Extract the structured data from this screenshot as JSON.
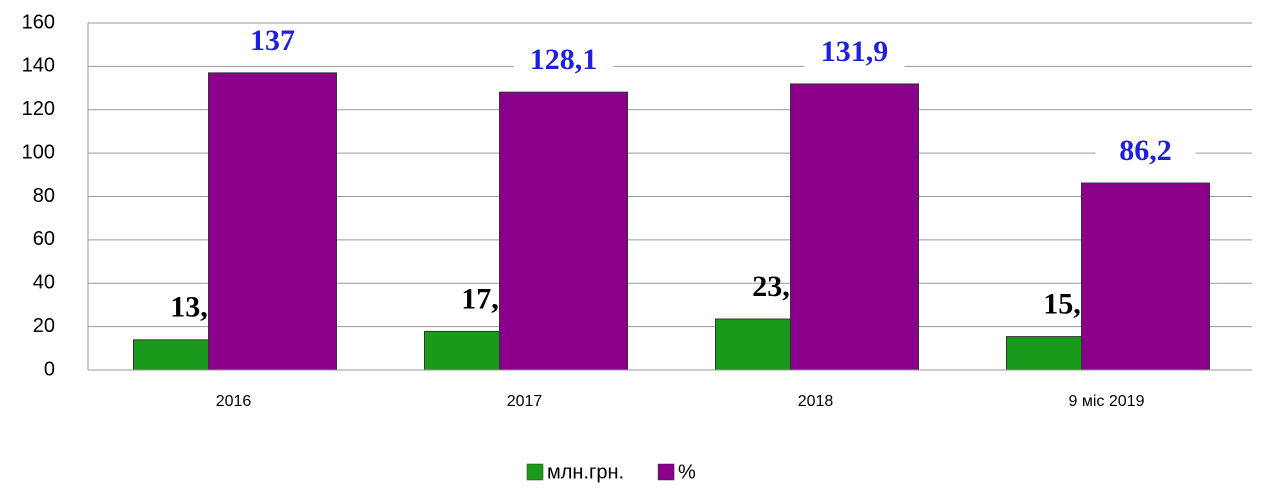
{
  "chart_data": {
    "type": "bar",
    "categories": [
      "2016",
      "2017",
      "2018",
      "9 міс 2019"
    ],
    "series": [
      {
        "name": "млн.грн.",
        "color": "#1a9a1a",
        "values": [
          13.9,
          17.8,
          23.5,
          15.4
        ],
        "value_labels": [
          "13,9",
          "17,8",
          "23,5",
          "15,4"
        ]
      },
      {
        "name": "%",
        "color": "#8b008b",
        "values": [
          137,
          128.1,
          131.9,
          86.2
        ],
        "value_labels": [
          "137",
          "128,1",
          "131,9",
          "86,2"
        ]
      }
    ],
    "ylim": [
      0,
      160
    ],
    "yticks": [
      0,
      20,
      40,
      60,
      80,
      100,
      120,
      140,
      160
    ],
    "grid": true,
    "legend": "bottom"
  }
}
